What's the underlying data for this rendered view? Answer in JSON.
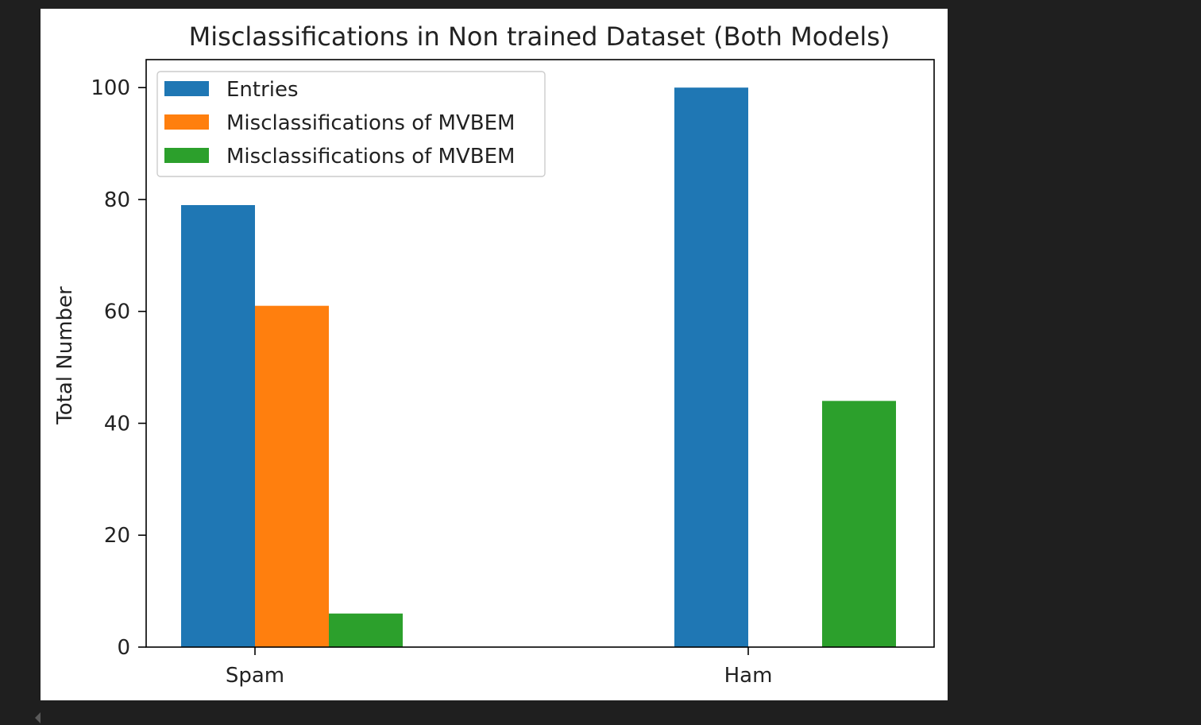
{
  "chart_data": {
    "type": "bar",
    "title": "Misclassifications in Non trained Dataset (Both Models)",
    "xlabel": "",
    "ylabel": "Total Number",
    "categories": [
      "Spam",
      "Ham"
    ],
    "series": [
      {
        "name": "Entries",
        "values": [
          79,
          100
        ],
        "color": "#1f77b4"
      },
      {
        "name": "Misclassifications of MVBEM",
        "values": [
          61,
          0
        ],
        "color": "#ff7f0e"
      },
      {
        "name": "Misclassifications of MVBEM",
        "values": [
          6,
          44
        ],
        "color": "#2ca02c"
      }
    ],
    "ylim": [
      0,
      105
    ],
    "yticks": [
      0,
      20,
      40,
      60,
      80,
      100
    ],
    "grid": false,
    "legend": "top-left"
  }
}
